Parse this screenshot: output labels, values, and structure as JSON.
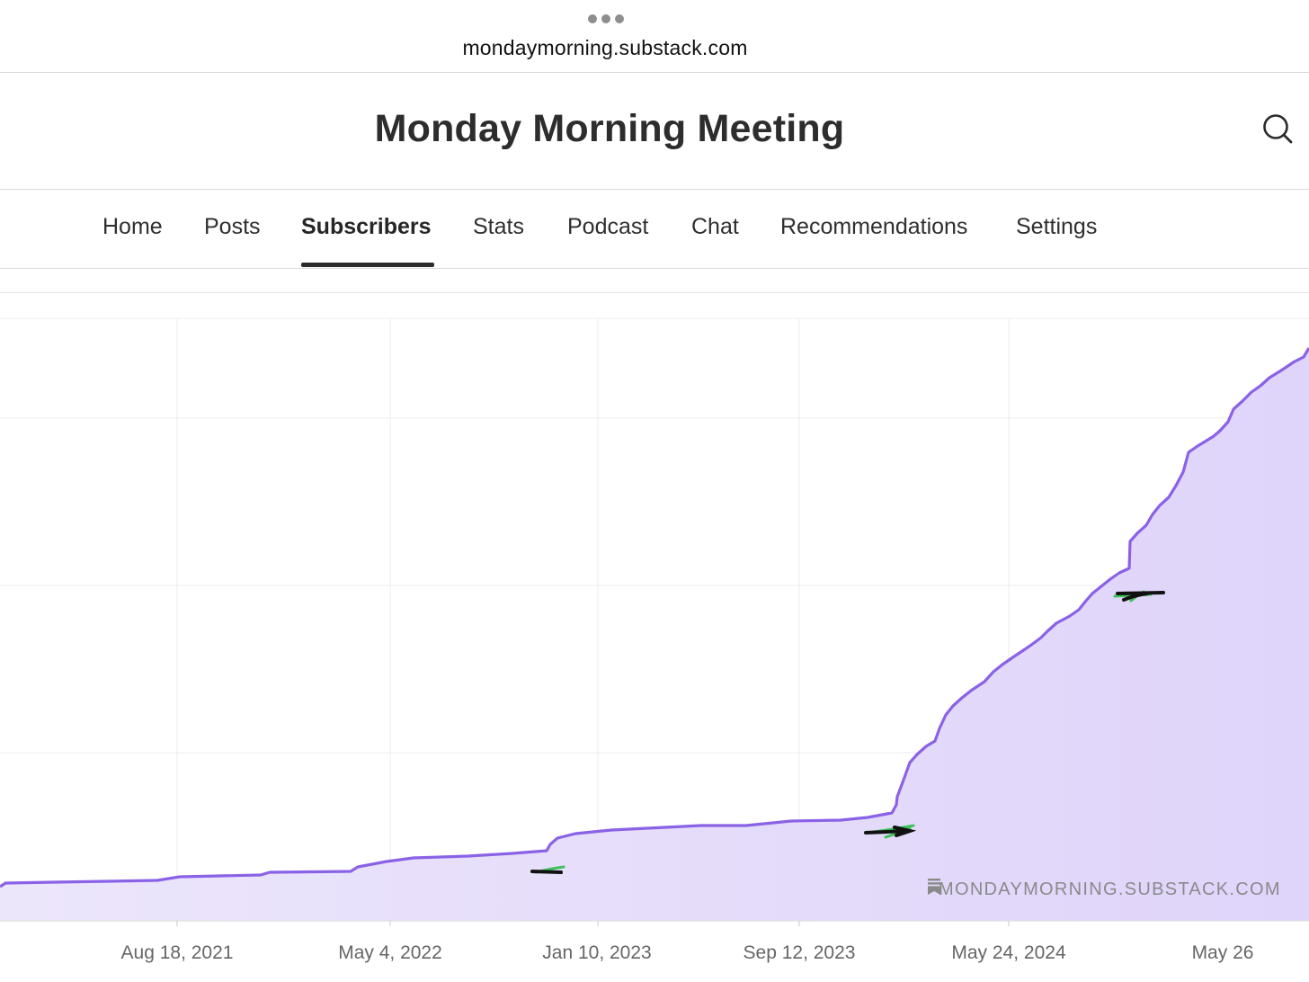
{
  "browser": {
    "menu_icon": "more-horizontal-icon",
    "url": "mondaymorning.substack.com"
  },
  "publication": {
    "title": "Monday Morning Meeting",
    "search_icon": "search-icon"
  },
  "nav": {
    "tabs": [
      {
        "label": "Home"
      },
      {
        "label": "Posts"
      },
      {
        "label": "Subscribers",
        "active": true
      },
      {
        "label": "Stats"
      },
      {
        "label": "Podcast"
      },
      {
        "label": "Chat"
      },
      {
        "label": "Recommendations"
      },
      {
        "label": "Settings"
      }
    ]
  },
  "chart_data": {
    "type": "area",
    "title": "",
    "xlabel": "",
    "ylabel": "",
    "y_tick_labels_visible": false,
    "x_tick_labels": [
      "Aug 18, 2021",
      "May 4, 2022",
      "Jan 10, 2023",
      "Sep 12, 2023",
      "May 24, 2024",
      "May 26"
    ],
    "grid": true,
    "line_color": "#8a62e6",
    "fill_color": "#e6defb",
    "watermark": "MONDAYMORNING.SUBSTACK.COM",
    "watermark_icon": "substack-bookmark-icon",
    "annotations": "hand-drawn black and green strokes near the line at three points"
  }
}
